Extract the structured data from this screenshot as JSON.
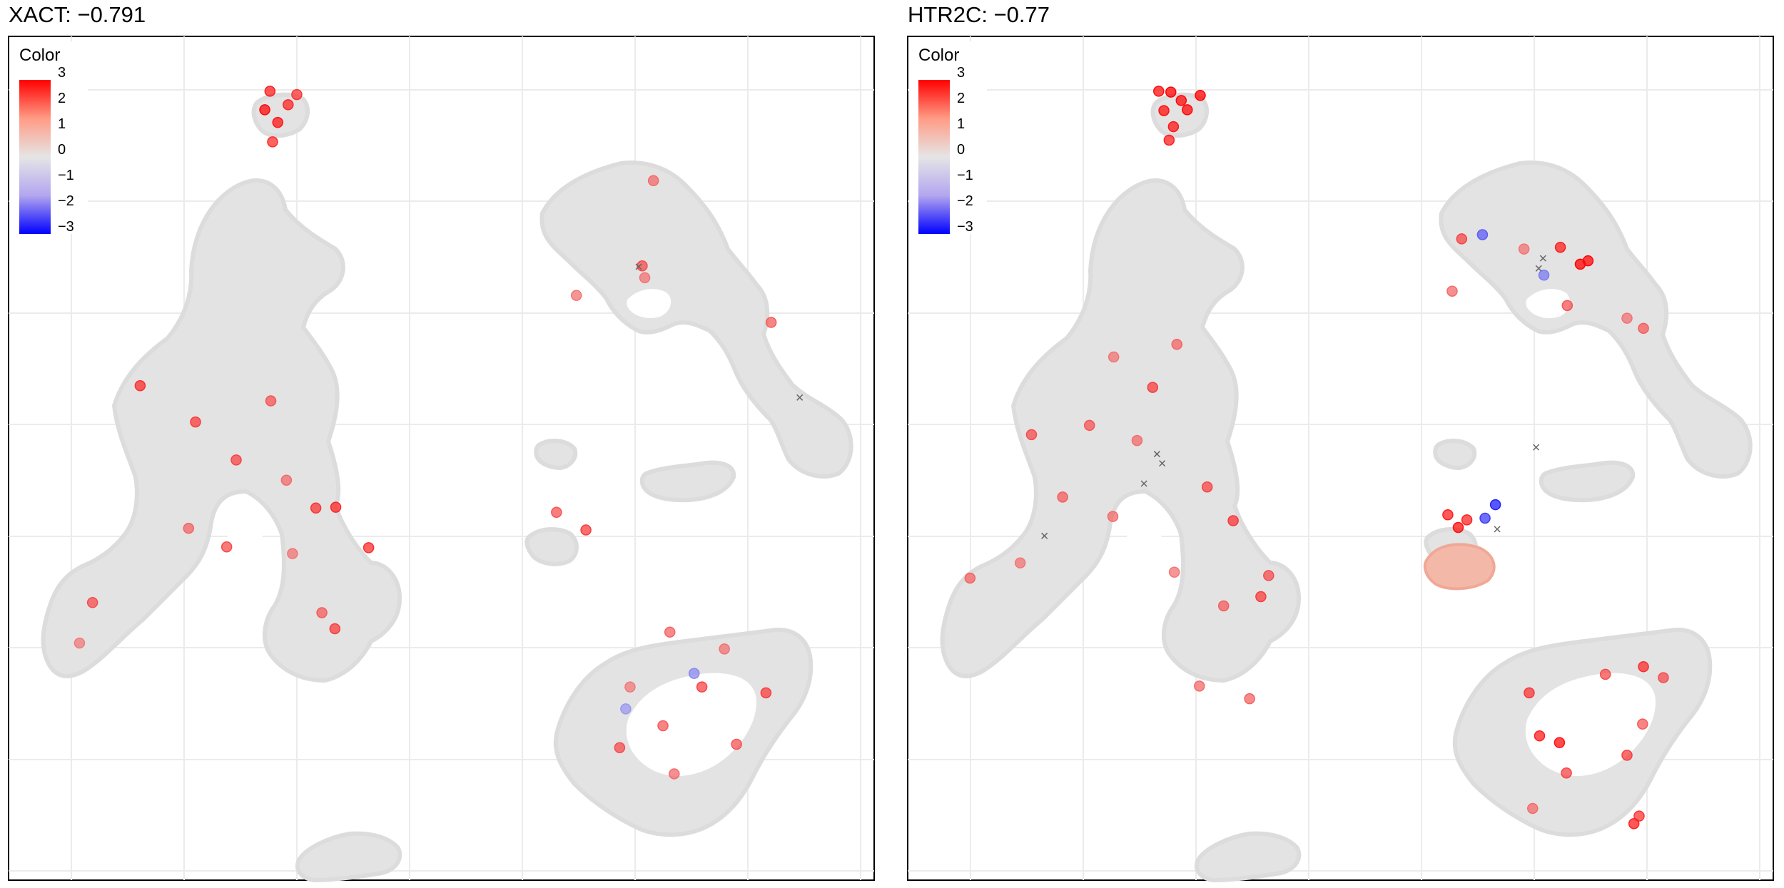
{
  "chart_data": [
    {
      "type": "scatter",
      "title": "XACT: −0.791",
      "xlabel": "",
      "ylabel": "",
      "grid": true,
      "legend": {
        "title": "Color",
        "position": "top-left",
        "ticks": [
          "3",
          "2",
          "1",
          "0",
          "−1",
          "−2",
          "−3"
        ],
        "range": [
          -3,
          3
        ],
        "colors": {
          "high": "#ff0000",
          "mid": "#e5e5e5",
          "low": "#0000ff"
        }
      },
      "highlight_points": [
        {
          "x": 0.152,
          "y": 0.586,
          "v": 2.4
        },
        {
          "x": 0.216,
          "y": 0.543,
          "v": 2.2
        },
        {
          "x": 0.303,
          "y": 0.568,
          "v": 1.9
        },
        {
          "x": 0.263,
          "y": 0.498,
          "v": 2.1
        },
        {
          "x": 0.321,
          "y": 0.474,
          "v": 1.6
        },
        {
          "x": 0.355,
          "y": 0.441,
          "v": 2.3
        },
        {
          "x": 0.252,
          "y": 0.395,
          "v": 2.0
        },
        {
          "x": 0.362,
          "y": 0.317,
          "v": 1.8
        },
        {
          "x": 0.377,
          "y": 0.298,
          "v": 2.2
        },
        {
          "x": 0.416,
          "y": 0.394,
          "v": 2.4
        },
        {
          "x": 0.328,
          "y": 0.387,
          "v": 1.5
        },
        {
          "x": 0.208,
          "y": 0.417,
          "v": 1.7
        },
        {
          "x": 0.097,
          "y": 0.329,
          "v": 2.0
        },
        {
          "x": 0.378,
          "y": 0.442,
          "v": 2.5
        },
        {
          "x": 0.082,
          "y": 0.281,
          "v": 1.4
        },
        {
          "x": 0.302,
          "y": 0.935,
          "v": 2.6
        },
        {
          "x": 0.311,
          "y": 0.898,
          "v": 2.7
        },
        {
          "x": 0.296,
          "y": 0.913,
          "v": 2.9
        },
        {
          "x": 0.323,
          "y": 0.919,
          "v": 2.5
        },
        {
          "x": 0.333,
          "y": 0.931,
          "v": 2.3
        },
        {
          "x": 0.305,
          "y": 0.875,
          "v": 2.4
        },
        {
          "x": 0.732,
          "y": 0.728,
          "v": 2.0
        },
        {
          "x": 0.745,
          "y": 0.829,
          "v": 1.6
        },
        {
          "x": 0.656,
          "y": 0.693,
          "v": 1.5
        },
        {
          "x": 0.881,
          "y": 0.661,
          "v": 1.8
        },
        {
          "x": 0.633,
          "y": 0.436,
          "v": 1.9
        },
        {
          "x": 0.667,
          "y": 0.415,
          "v": 2.2
        },
        {
          "x": 0.764,
          "y": 0.294,
          "v": 1.7
        },
        {
          "x": 0.801,
          "y": 0.229,
          "v": 2.1
        },
        {
          "x": 0.841,
          "y": 0.161,
          "v": 1.9
        },
        {
          "x": 0.769,
          "y": 0.126,
          "v": 1.6
        },
        {
          "x": 0.875,
          "y": 0.222,
          "v": 2.2
        },
        {
          "x": 0.756,
          "y": 0.183,
          "v": 1.8
        },
        {
          "x": 0.706,
          "y": 0.157,
          "v": 2.0
        },
        {
          "x": 0.827,
          "y": 0.274,
          "v": 1.5
        },
        {
          "x": 0.718,
          "y": 0.229,
          "v": 1.4
        },
        {
          "x": 0.735,
          "y": 0.714,
          "v": 1.5
        },
        {
          "x": 0.792,
          "y": 0.245,
          "v": -1.2
        },
        {
          "x": 0.713,
          "y": 0.203,
          "v": -1.0
        }
      ],
      "markers": [
        {
          "x": 0.728,
          "y": 0.727
        },
        {
          "x": 0.914,
          "y": 0.572
        }
      ]
    },
    {
      "type": "scatter",
      "title": "HTR2C: −0.77",
      "xlabel": "",
      "ylabel": "",
      "grid": true,
      "legend": {
        "title": "Color",
        "position": "top-left",
        "ticks": [
          "3",
          "2",
          "1",
          "0",
          "−1",
          "−2",
          "−3"
        ],
        "range": [
          -3,
          3
        ],
        "colors": {
          "high": "#ff0000",
          "mid": "#e5e5e5",
          "low": "#0000ff"
        }
      },
      "highlight_points": [
        {
          "x": 0.304,
          "y": 0.934,
          "v": 3.0
        },
        {
          "x": 0.316,
          "y": 0.924,
          "v": 2.9
        },
        {
          "x": 0.296,
          "y": 0.912,
          "v": 2.8
        },
        {
          "x": 0.323,
          "y": 0.913,
          "v": 2.9
        },
        {
          "x": 0.307,
          "y": 0.893,
          "v": 2.7
        },
        {
          "x": 0.338,
          "y": 0.93,
          "v": 3.0
        },
        {
          "x": 0.29,
          "y": 0.935,
          "v": 2.8
        },
        {
          "x": 0.302,
          "y": 0.877,
          "v": 2.6
        },
        {
          "x": 0.777,
          "y": 0.73,
          "v": 3.0
        },
        {
          "x": 0.786,
          "y": 0.734,
          "v": 2.9
        },
        {
          "x": 0.754,
          "y": 0.75,
          "v": 2.6
        },
        {
          "x": 0.64,
          "y": 0.76,
          "v": 2.1
        },
        {
          "x": 0.712,
          "y": 0.748,
          "v": 1.5
        },
        {
          "x": 0.85,
          "y": 0.654,
          "v": 1.8
        },
        {
          "x": 0.831,
          "y": 0.666,
          "v": 1.5
        },
        {
          "x": 0.629,
          "y": 0.698,
          "v": 1.6
        },
        {
          "x": 0.762,
          "y": 0.681,
          "v": 1.9
        },
        {
          "x": 0.624,
          "y": 0.433,
          "v": 2.6
        },
        {
          "x": 0.636,
          "y": 0.418,
          "v": 2.8
        },
        {
          "x": 0.646,
          "y": 0.427,
          "v": 2.5
        },
        {
          "x": 0.73,
          "y": 0.171,
          "v": 2.6
        },
        {
          "x": 0.753,
          "y": 0.163,
          "v": 2.8
        },
        {
          "x": 0.718,
          "y": 0.222,
          "v": 2.3
        },
        {
          "x": 0.806,
          "y": 0.244,
          "v": 2.0
        },
        {
          "x": 0.761,
          "y": 0.127,
          "v": 2.1
        },
        {
          "x": 0.849,
          "y": 0.185,
          "v": 1.8
        },
        {
          "x": 0.873,
          "y": 0.24,
          "v": 2.0
        },
        {
          "x": 0.831,
          "y": 0.148,
          "v": 2.2
        },
        {
          "x": 0.85,
          "y": 0.253,
          "v": 2.4
        },
        {
          "x": 0.845,
          "y": 0.076,
          "v": 2.3
        },
        {
          "x": 0.839,
          "y": 0.067,
          "v": 2.6
        },
        {
          "x": 0.722,
          "y": 0.085,
          "v": 1.6
        },
        {
          "x": 0.143,
          "y": 0.528,
          "v": 2.0
        },
        {
          "x": 0.21,
          "y": 0.539,
          "v": 1.9
        },
        {
          "x": 0.265,
          "y": 0.521,
          "v": 1.6
        },
        {
          "x": 0.346,
          "y": 0.466,
          "v": 2.1
        },
        {
          "x": 0.376,
          "y": 0.426,
          "v": 2.3
        },
        {
          "x": 0.417,
          "y": 0.361,
          "v": 2.0
        },
        {
          "x": 0.365,
          "y": 0.325,
          "v": 1.8
        },
        {
          "x": 0.308,
          "y": 0.365,
          "v": 1.5
        },
        {
          "x": 0.237,
          "y": 0.431,
          "v": 1.6
        },
        {
          "x": 0.283,
          "y": 0.584,
          "v": 2.2
        },
        {
          "x": 0.311,
          "y": 0.635,
          "v": 1.7
        },
        {
          "x": 0.238,
          "y": 0.62,
          "v": 1.5
        },
        {
          "x": 0.179,
          "y": 0.454,
          "v": 1.8
        },
        {
          "x": 0.13,
          "y": 0.376,
          "v": 1.5
        },
        {
          "x": 0.072,
          "y": 0.358,
          "v": 1.7
        },
        {
          "x": 0.408,
          "y": 0.336,
          "v": 2.2
        },
        {
          "x": 0.337,
          "y": 0.23,
          "v": 1.6
        },
        {
          "x": 0.395,
          "y": 0.215,
          "v": 1.7
        },
        {
          "x": 0.679,
          "y": 0.445,
          "v": -2.6
        },
        {
          "x": 0.667,
          "y": 0.429,
          "v": -2.2
        },
        {
          "x": 0.664,
          "y": 0.765,
          "v": -1.8
        },
        {
          "x": 0.735,
          "y": 0.717,
          "v": -1.4
        }
      ],
      "markers": [
        {
          "x": 0.734,
          "y": 0.737
        },
        {
          "x": 0.729,
          "y": 0.725
        },
        {
          "x": 0.288,
          "y": 0.505
        },
        {
          "x": 0.294,
          "y": 0.494
        },
        {
          "x": 0.273,
          "y": 0.47
        },
        {
          "x": 0.158,
          "y": 0.408
        },
        {
          "x": 0.726,
          "y": 0.513
        },
        {
          "x": 0.681,
          "y": 0.416
        }
      ]
    }
  ]
}
